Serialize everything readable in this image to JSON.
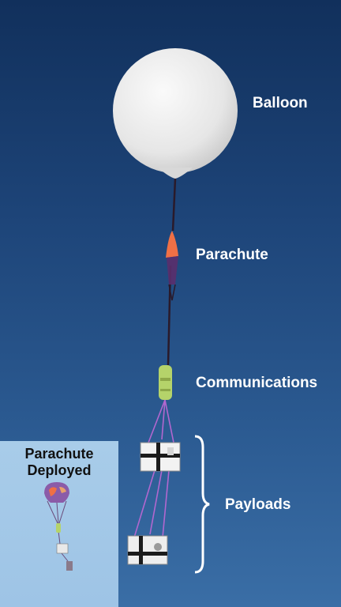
{
  "labels": {
    "balloon": "Balloon",
    "parachute": "Parachute",
    "communications": "Communications",
    "payloads": "Payloads"
  },
  "inset": {
    "title_line1": "Parachute",
    "title_line2": "Deployed"
  },
  "colors": {
    "sky_top": "#11305c",
    "sky_bottom": "#3a6ea6",
    "balloon": "#e9e9e9",
    "parachute": "#f07045",
    "communications": "#b5d36a",
    "inset_sky": "#a8cce9"
  }
}
